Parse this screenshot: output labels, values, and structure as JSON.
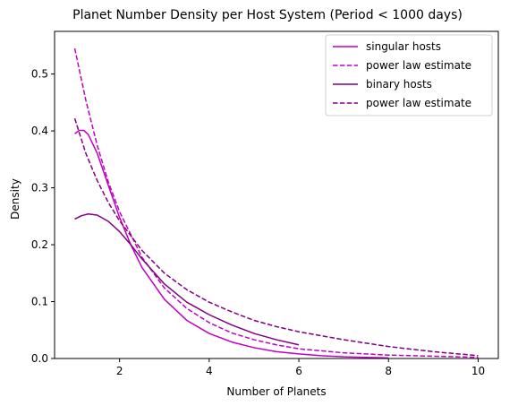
{
  "chart_data": {
    "type": "line",
    "title": "Planet Number Density per Host System (Period < 1000 days)",
    "xlabel": "Number of Planets",
    "ylabel": "Density",
    "xlim": [
      0.55,
      10.45
    ],
    "ylim": [
      0,
      0.575
    ],
    "xticks": [
      2,
      4,
      6,
      8,
      10
    ],
    "yticks": [
      0.0,
      0.1,
      0.2,
      0.3,
      0.4,
      0.5
    ],
    "ytick_labels": [
      "0.0",
      "0.1",
      "0.2",
      "0.3",
      "0.4",
      "0.5"
    ],
    "legend_position": "top-right",
    "grid": false,
    "series": [
      {
        "name": "singular hosts",
        "color": "#c000c0",
        "style": "solid",
        "x": [
          1.0,
          1.1,
          1.2,
          1.3,
          1.5,
          1.75,
          2.0,
          2.25,
          2.5,
          3.0,
          3.5,
          4.0,
          4.5,
          5.0,
          5.5,
          6.0,
          6.5,
          7.0,
          7.5,
          8.0
        ],
        "y": [
          0.395,
          0.401,
          0.401,
          0.394,
          0.361,
          0.304,
          0.248,
          0.2,
          0.16,
          0.104,
          0.067,
          0.044,
          0.029,
          0.019,
          0.012,
          0.008,
          0.005,
          0.003,
          0.002,
          0.001
        ]
      },
      {
        "name": "power law estimate",
        "color": "#c000c0",
        "style": "dashed",
        "x": [
          1.0,
          1.25,
          1.5,
          1.75,
          2.0,
          2.5,
          3.0,
          3.5,
          4.0,
          4.5,
          5.0,
          5.5,
          6.0,
          7.0,
          8.0,
          9.0,
          10.0
        ],
        "y": [
          0.545,
          0.453,
          0.375,
          0.31,
          0.258,
          0.178,
          0.124,
          0.088,
          0.063,
          0.045,
          0.033,
          0.024,
          0.017,
          0.01,
          0.006,
          0.004,
          0.002
        ]
      },
      {
        "name": "binary hosts",
        "color": "#800080",
        "style": "solid",
        "x": [
          1.0,
          1.15,
          1.3,
          1.5,
          1.75,
          2.0,
          2.25,
          2.5,
          3.0,
          3.5,
          4.0,
          4.5,
          5.0,
          5.5,
          6.0
        ],
        "y": [
          0.245,
          0.251,
          0.254,
          0.252,
          0.241,
          0.223,
          0.2,
          0.175,
          0.131,
          0.099,
          0.077,
          0.059,
          0.044,
          0.033,
          0.024
        ]
      },
      {
        "name": "power law estimate",
        "color": "#800080",
        "style": "dashed",
        "x": [
          1.0,
          1.25,
          1.5,
          1.75,
          2.0,
          2.5,
          3.0,
          3.5,
          4.0,
          4.5,
          5.0,
          5.5,
          6.0,
          7.0,
          8.0,
          9.0,
          10.0
        ],
        "y": [
          0.422,
          0.36,
          0.313,
          0.274,
          0.242,
          0.19,
          0.15,
          0.121,
          0.099,
          0.082,
          0.067,
          0.056,
          0.047,
          0.033,
          0.021,
          0.012,
          0.005
        ]
      }
    ]
  }
}
